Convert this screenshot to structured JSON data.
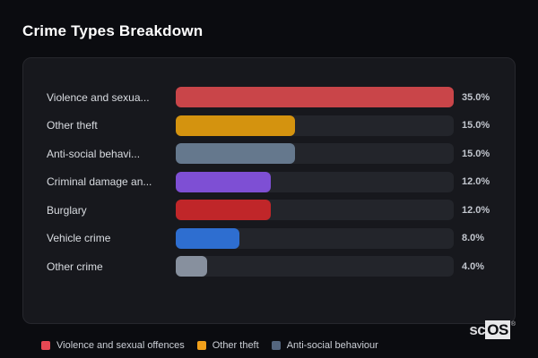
{
  "page": {
    "title": "Crime Types Breakdown",
    "watermark": {
      "prefix": "sc",
      "suffix": "OS",
      "registered": "®"
    }
  },
  "colors": {
    "background": "#0b0c10",
    "card_bg": "#17181d",
    "card_border": "#26272d",
    "track": "#23252b",
    "title_text": "#ffffff",
    "label_text": "#d9dce1",
    "value_text": "#c2c6ce",
    "legend_text": "#ccd0d7"
  },
  "chart_data": {
    "type": "bar",
    "orientation": "horizontal",
    "title": "Crime Types Breakdown",
    "categories": [
      "Violence and sexua...",
      "Other theft",
      "Anti-social behavi...",
      "Criminal damage an...",
      "Burglary",
      "Vehicle crime",
      "Other crime"
    ],
    "values": [
      35.0,
      15.0,
      15.0,
      12.0,
      12.0,
      8.0,
      4.0
    ],
    "value_labels": [
      "35.0%",
      "15.0%",
      "15.0%",
      "12.0%",
      "12.0%",
      "8.0%",
      "4.0%"
    ],
    "bar_colors": [
      "#c94549",
      "#d4930f",
      "#65788d",
      "#7e4fd4",
      "#c02629",
      "#2e6ed0",
      "#87909e"
    ],
    "unit": "%",
    "xlim": [
      0,
      35
    ],
    "grid": false,
    "legend_position": "bottom",
    "legend": [
      {
        "label": "Violence and sexual offences",
        "color": "#e74853"
      },
      {
        "label": "Other theft",
        "color": "#f1a01b"
      },
      {
        "label": "Anti-social behaviour",
        "color": "#54667e"
      }
    ]
  }
}
